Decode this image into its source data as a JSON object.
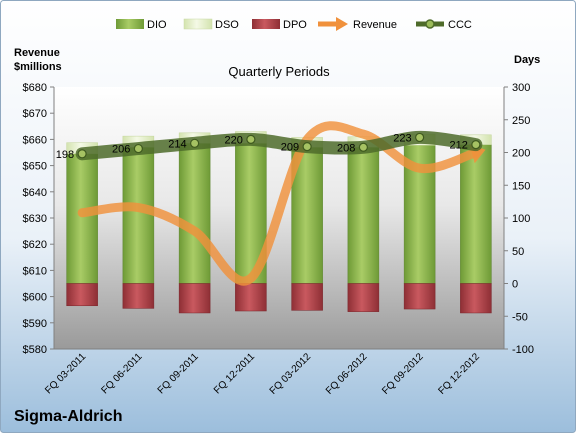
{
  "chart_data": {
    "type": "bar",
    "title": "Quarterly Periods",
    "company": "Sigma-Aldrich",
    "left_axis": {
      "label_line1": "Revenue",
      "label_line2": "$millions",
      "range": [
        580,
        680
      ],
      "ticks": [
        "$580",
        "$590",
        "$600",
        "$610",
        "$620",
        "$630",
        "$640",
        "$650",
        "$660",
        "$670",
        "$680"
      ]
    },
    "right_axis": {
      "label": "Days",
      "range": [
        -100,
        300
      ],
      "ticks": [
        "-100",
        "-50",
        "0",
        "50",
        "100",
        "150",
        "200",
        "250",
        "300"
      ]
    },
    "categories": [
      "FQ 03-2011",
      "FQ 06-2011",
      "FQ 09-2011",
      "FQ 12-2011",
      "FQ 03-2012",
      "FQ 06-2012",
      "FQ 09-2012",
      "FQ 12-2012"
    ],
    "series": [
      {
        "name": "DIO",
        "axis": "right",
        "color": "#8DB04A",
        "values": [
          198,
          208,
          214,
          214,
          208,
          208,
          211,
          212
        ]
      },
      {
        "name": "DSO",
        "axis": "right",
        "color": "#E4EFC8",
        "values": [
          17,
          17,
          16,
          18,
          15,
          16,
          17,
          15
        ]
      },
      {
        "name": "DPO",
        "axis": "right",
        "color": "#B5464C",
        "values": [
          -34,
          -38,
          -45,
          -42,
          -41,
          -43,
          -39,
          -45
        ]
      },
      {
        "name": "Revenue",
        "axis": "left",
        "color": "#F0913C",
        "values": [
          632,
          634,
          625,
          607,
          660,
          662,
          649,
          655
        ]
      },
      {
        "name": "CCC",
        "axis": "right",
        "color": "#4E6B2A",
        "values": [
          198,
          206,
          214,
          220,
          209,
          208,
          223,
          212
        ]
      }
    ],
    "ccc_labels": [
      "198",
      "206",
      "214",
      "220",
      "209",
      "208",
      "223",
      "212"
    ],
    "legend": [
      "DIO",
      "DSO",
      "DPO",
      "Revenue",
      "CCC"
    ],
    "legend_position": "top",
    "grid": false
  }
}
